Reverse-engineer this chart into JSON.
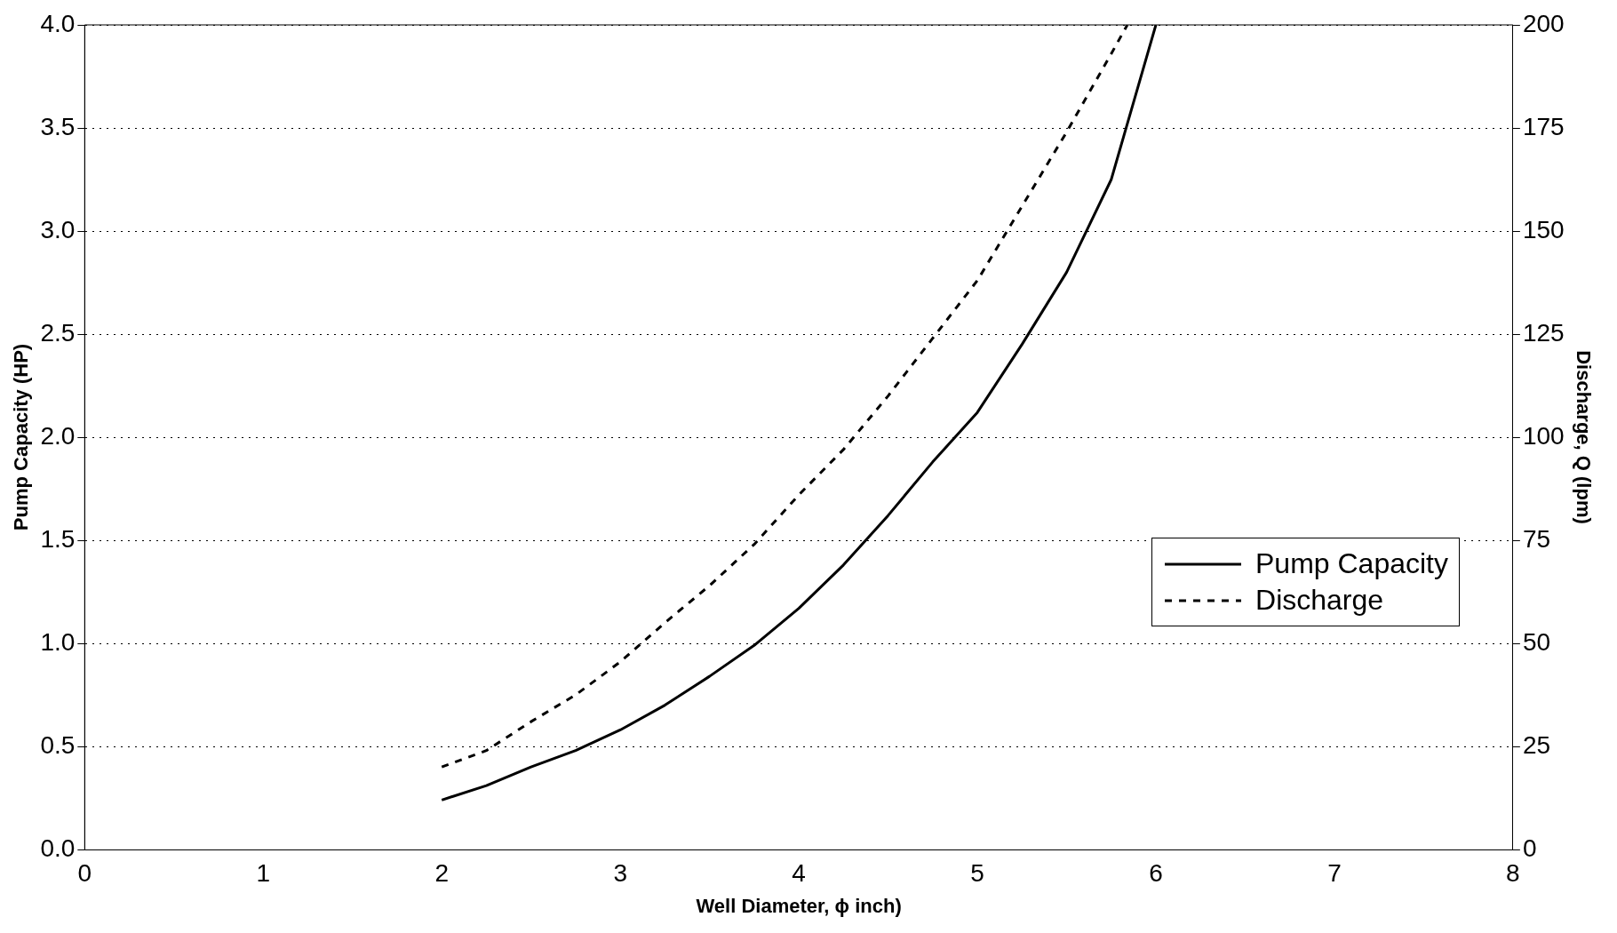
{
  "chart_data": {
    "type": "line",
    "xlabel": "Well Diameter, ϕ inch)",
    "ylabel": "Pump Capacity (HP)",
    "y2label": "Discharge, Q (lpm)",
    "xlim": [
      0,
      8
    ],
    "xticks": [
      0,
      1,
      2,
      3,
      4,
      5,
      6,
      7,
      8
    ],
    "ylim": [
      0,
      4
    ],
    "yticks": [
      {
        "value": 0,
        "label": "0.0"
      },
      {
        "value": 0.5,
        "label": "0.5"
      },
      {
        "value": 1,
        "label": "1.0"
      },
      {
        "value": 1.5,
        "label": "1.5"
      },
      {
        "value": 2,
        "label": "2.0"
      },
      {
        "value": 2.5,
        "label": "2.5"
      },
      {
        "value": 3,
        "label": "3.0"
      },
      {
        "value": 3.5,
        "label": "3.5"
      },
      {
        "value": 4,
        "label": "4.0"
      }
    ],
    "y2lim": [
      0,
      200
    ],
    "y2ticks": [
      0,
      25,
      50,
      75,
      100,
      125,
      150,
      175,
      200
    ],
    "grid": "y",
    "legend": "right",
    "marker": "none",
    "series": [
      {
        "name": "Pump Capacity",
        "color": "#000000",
        "line_style": "solid",
        "x": [
          2,
          2.25,
          2.5,
          2.75,
          3,
          3.25,
          3.5,
          3.75,
          4,
          4.25,
          4.5,
          4.75,
          5,
          5.25,
          5.5,
          5.75,
          6
        ],
        "values": [
          0.24,
          0.31,
          0.4,
          0.48,
          0.58,
          0.7,
          0.84,
          0.99,
          1.17,
          1.38,
          1.62,
          1.88,
          2.12,
          2.45,
          2.8,
          3.25,
          4.0
        ]
      },
      {
        "name": "Discharge",
        "color": "#000000",
        "line_style": "dashed",
        "axis": "y2",
        "x": [
          2,
          2.25,
          2.5,
          2.75,
          3,
          3.25,
          3.5,
          3.75,
          4,
          4.25,
          4.5,
          4.75,
          5,
          5.25,
          5.5,
          5.75,
          5.84
        ],
        "values": [
          20,
          24,
          31,
          37.5,
          45.5,
          55,
          64,
          74,
          86,
          97,
          110,
          124,
          138,
          156,
          174,
          193,
          200
        ]
      }
    ]
  }
}
